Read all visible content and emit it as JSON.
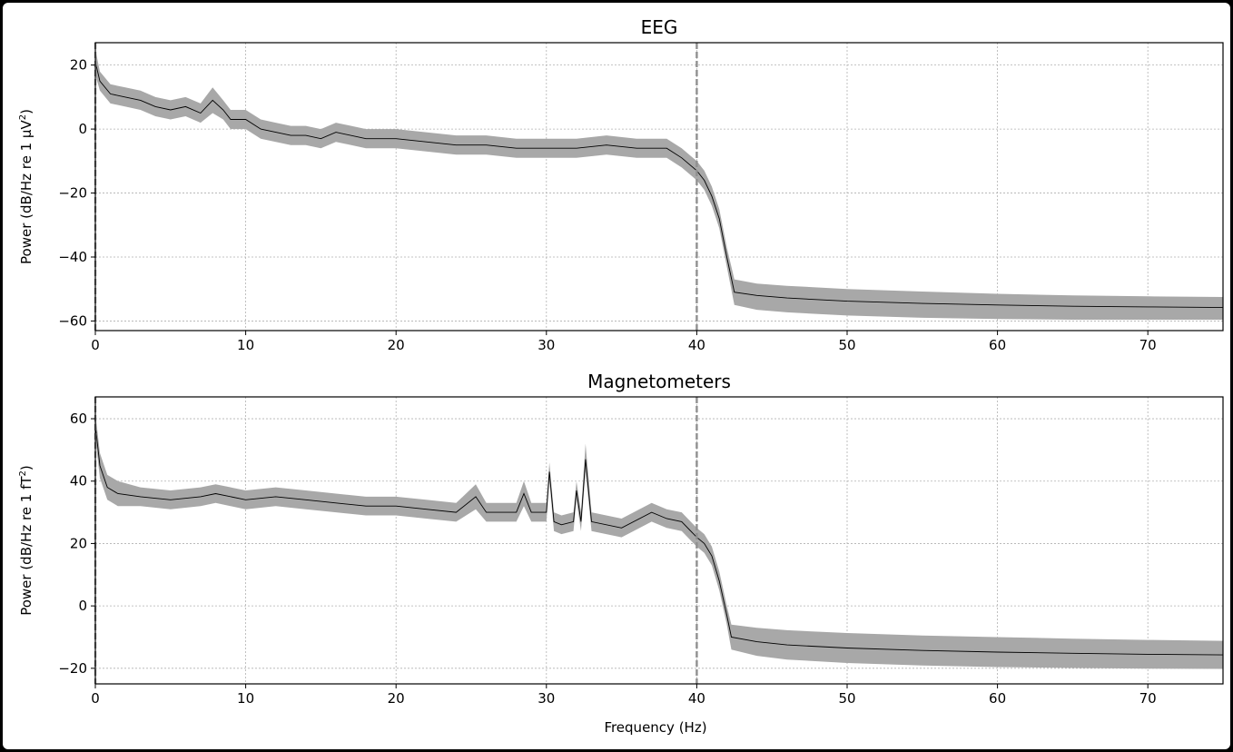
{
  "figure": {
    "xlabel": "Frequency (Hz)"
  },
  "chart_data": [
    {
      "type": "line",
      "title": "EEG",
      "ylabel_prefix": "Power (dB/Hz re 1 μV",
      "ylabel_sup": "2",
      "ylabel_suffix": ")",
      "xlim": [
        0,
        75
      ],
      "ylim": [
        -63,
        27
      ],
      "xticks": [
        0,
        10,
        20,
        30,
        40,
        50,
        60,
        70
      ],
      "yticks": [
        20,
        0,
        -20,
        -40,
        -60
      ],
      "vertical_lines": [
        0,
        40
      ],
      "grid": true,
      "mean_line_color": "#000000",
      "band_color": "#a8a8a8",
      "series": [
        {
          "x": [
            0,
            0.3,
            1,
            2,
            3,
            4,
            5,
            6,
            7,
            7.8,
            8.5,
            9,
            10,
            11,
            12,
            13,
            14,
            15,
            16,
            18,
            20,
            22,
            24,
            26,
            28,
            30,
            32,
            34,
            36,
            38,
            39,
            40,
            40.5,
            41,
            41.5,
            42,
            42.5,
            44,
            46,
            50,
            55,
            60,
            65,
            70,
            75
          ],
          "mean": [
            21,
            15,
            11,
            10,
            9,
            7,
            6,
            7,
            5,
            9,
            6,
            3,
            3,
            0,
            -1,
            -2,
            -2,
            -3,
            -1,
            -3,
            -3,
            -4,
            -5,
            -5,
            -6,
            -6,
            -6,
            -5,
            -6,
            -6,
            -9,
            -13,
            -16,
            -21,
            -28,
            -40,
            -51,
            -52,
            -52.8,
            -53.8,
            -54.5,
            -55,
            -55.4,
            -55.6,
            -55.8
          ],
          "band_lower": [
            17,
            12,
            8,
            7,
            6,
            4,
            3,
            4,
            2,
            5,
            3,
            0,
            0,
            -3,
            -4,
            -5,
            -5,
            -6,
            -4,
            -6,
            -6,
            -7,
            -8,
            -8,
            -9,
            -9,
            -9,
            -8,
            -9,
            -9,
            -12,
            -16,
            -19,
            -24,
            -31,
            -43,
            -55,
            -56.5,
            -57.3,
            -58.3,
            -59,
            -59.4,
            -59.6,
            -59.6,
            -59.6
          ],
          "band_upper": [
            25,
            18,
            14,
            13,
            12,
            10,
            9,
            10,
            8,
            13,
            9,
            6,
            6,
            3,
            2,
            1,
            1,
            0,
            2,
            0,
            0,
            -1,
            -2,
            -2,
            -3,
            -3,
            -3,
            -2,
            -3,
            -3,
            -6,
            -10,
            -13,
            -18,
            -25,
            -37,
            -47,
            -48.3,
            -49,
            -50,
            -50.8,
            -51.5,
            -52,
            -52.3,
            -52.5
          ]
        }
      ]
    },
    {
      "type": "line",
      "title": "Magnetometers",
      "ylabel_prefix": "Power (dB/Hz re 1 fT",
      "ylabel_sup": "2",
      "ylabel_suffix": ")",
      "xlim": [
        0,
        75
      ],
      "ylim": [
        -25,
        67
      ],
      "xticks": [
        0,
        10,
        20,
        30,
        40,
        50,
        60,
        70
      ],
      "yticks": [
        60,
        40,
        20,
        0,
        -20
      ],
      "vertical_lines": [
        0,
        40
      ],
      "grid": true,
      "mean_line_color": "#000000",
      "band_color": "#a8a8a8",
      "series": [
        {
          "x": [
            0,
            0.3,
            0.8,
            1.5,
            3,
            5,
            7,
            8,
            10,
            12,
            14,
            16,
            18,
            20,
            22,
            24,
            25.3,
            26,
            28,
            28.5,
            29,
            30,
            30.2,
            30.5,
            31,
            31.8,
            32,
            32.3,
            32.6,
            33,
            35,
            37,
            38,
            39,
            40,
            40.5,
            41,
            41.5,
            42,
            42.3,
            44,
            46,
            50,
            55,
            60,
            65,
            70,
            75
          ],
          "mean": [
            58,
            45,
            38,
            36,
            35,
            34,
            35,
            36,
            34,
            35,
            34,
            33,
            32,
            32,
            31,
            30,
            35,
            30,
            30,
            36,
            30,
            30,
            43,
            27,
            26,
            27,
            37,
            27,
            47,
            27,
            25,
            30,
            28,
            27,
            22,
            20,
            16,
            8,
            -3,
            -10,
            -11.5,
            -12.5,
            -13.5,
            -14.3,
            -14.8,
            -15.2,
            -15.5,
            -15.7
          ],
          "band_lower": [
            54,
            41,
            34,
            32,
            32,
            31,
            32,
            33,
            31,
            32,
            31,
            30,
            29,
            29,
            28,
            27,
            31,
            27,
            27,
            32,
            27,
            27,
            40,
            24,
            23,
            24,
            34,
            24,
            43,
            24,
            22,
            27,
            25,
            24,
            19,
            17,
            13,
            5,
            -6,
            -14,
            -16,
            -17.2,
            -18.3,
            -19.1,
            -19.6,
            -19.9,
            -20.1,
            -20.2
          ],
          "band_upper": [
            62,
            49,
            42,
            40,
            38,
            37,
            38,
            39,
            37,
            38,
            37,
            36,
            35,
            35,
            34,
            33,
            39,
            33,
            33,
            40,
            33,
            33,
            46,
            30,
            29,
            30,
            40,
            30,
            52,
            30,
            28,
            33,
            31,
            30,
            25,
            23,
            19,
            11,
            0,
            -6,
            -7,
            -7.8,
            -8.7,
            -9.5,
            -10,
            -10.5,
            -10.9,
            -11.2
          ]
        }
      ]
    }
  ]
}
